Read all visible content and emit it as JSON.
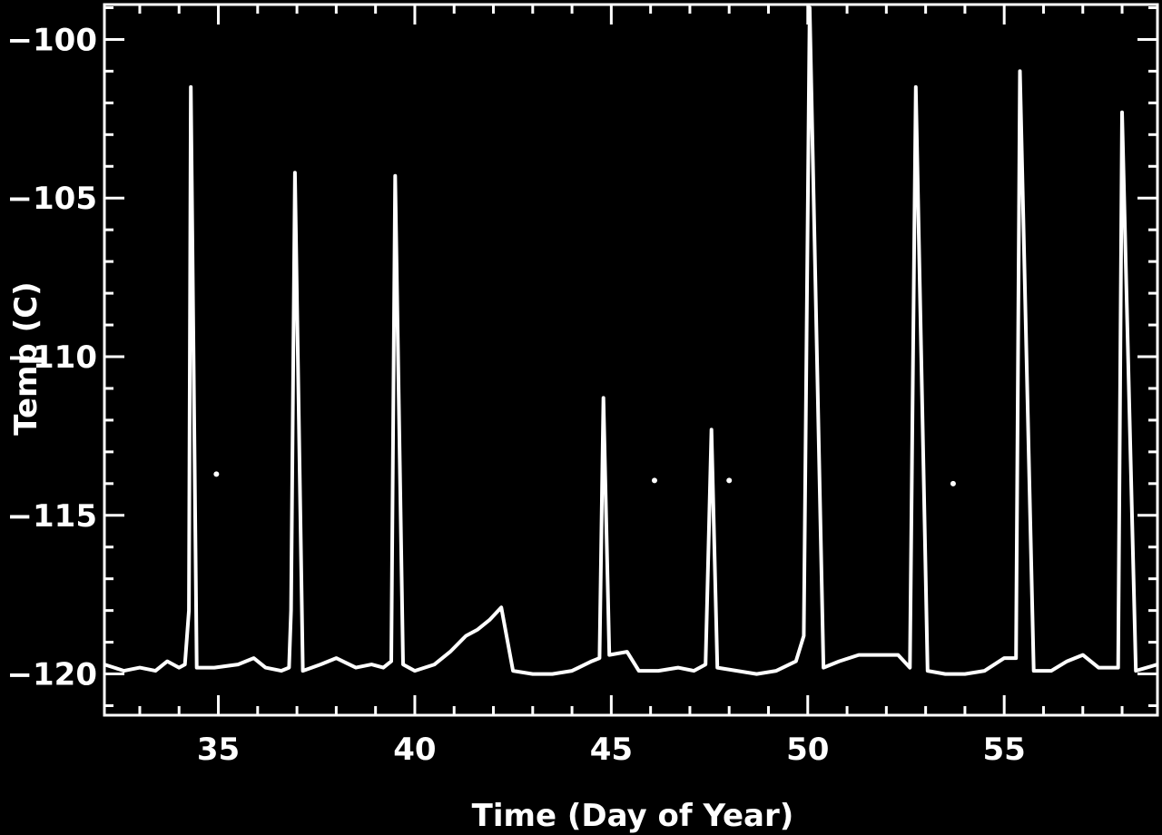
{
  "chart_data": {
    "type": "line",
    "title": "",
    "xlabel": "Time (Day of Year)",
    "ylabel": "Temp (C)",
    "xlim": [
      32.1,
      58.9
    ],
    "ylim": [
      -121.3,
      -98.9
    ],
    "xticks": [
      35,
      40,
      45,
      50,
      55
    ],
    "yticks": [
      -100,
      -105,
      -110,
      -115,
      -120
    ],
    "grid": false,
    "legend": "none",
    "colors": {
      "background": "#000000",
      "foreground": "#ffffff"
    },
    "series": [
      {
        "values": [
          [
            32.1,
            -119.7
          ],
          [
            32.6,
            -119.9
          ],
          [
            33.0,
            -119.8
          ],
          [
            33.4,
            -119.9
          ],
          [
            33.7,
            -119.6
          ],
          [
            34.0,
            -119.8
          ],
          [
            34.15,
            -119.7
          ],
          [
            34.25,
            -118.0
          ],
          [
            34.3,
            -101.5
          ],
          [
            34.45,
            -119.8
          ],
          [
            34.9,
            -119.8
          ],
          [
            35.5,
            -119.7
          ],
          [
            35.9,
            -119.5
          ],
          [
            36.2,
            -119.8
          ],
          [
            36.6,
            -119.9
          ],
          [
            36.8,
            -119.8
          ],
          [
            36.85,
            -118.0
          ],
          [
            36.95,
            -104.2
          ],
          [
            37.15,
            -119.9
          ],
          [
            37.6,
            -119.7
          ],
          [
            38.0,
            -119.5
          ],
          [
            38.5,
            -119.8
          ],
          [
            38.9,
            -119.7
          ],
          [
            39.2,
            -119.8
          ],
          [
            39.4,
            -119.6
          ],
          [
            39.5,
            -104.3
          ],
          [
            39.7,
            -119.7
          ],
          [
            40.0,
            -119.9
          ],
          [
            40.5,
            -119.7
          ],
          [
            40.9,
            -119.3
          ],
          [
            41.3,
            -118.8
          ],
          [
            41.6,
            -118.6
          ],
          [
            41.9,
            -118.3
          ],
          [
            42.2,
            -117.9
          ],
          [
            42.5,
            -119.9
          ],
          [
            43.0,
            -120.0
          ],
          [
            43.5,
            -120.0
          ],
          [
            44.0,
            -119.9
          ],
          [
            44.5,
            -119.6
          ],
          [
            44.7,
            -119.5
          ],
          [
            44.8,
            -111.3
          ],
          [
            44.95,
            -119.4
          ],
          [
            45.4,
            -119.3
          ],
          [
            45.7,
            -119.9
          ],
          [
            46.2,
            -119.9
          ],
          [
            46.7,
            -119.8
          ],
          [
            47.1,
            -119.9
          ],
          [
            47.4,
            -119.7
          ],
          [
            47.55,
            -112.3
          ],
          [
            47.7,
            -119.8
          ],
          [
            48.2,
            -119.9
          ],
          [
            48.7,
            -120.0
          ],
          [
            49.2,
            -119.9
          ],
          [
            49.7,
            -119.6
          ],
          [
            49.9,
            -118.8
          ],
          [
            50.05,
            -99.0
          ],
          [
            50.4,
            -119.8
          ],
          [
            50.8,
            -119.6
          ],
          [
            51.3,
            -119.4
          ],
          [
            51.8,
            -119.4
          ],
          [
            52.3,
            -119.4
          ],
          [
            52.6,
            -119.8
          ],
          [
            52.75,
            -101.5
          ],
          [
            53.05,
            -119.9
          ],
          [
            53.5,
            -120.0
          ],
          [
            54.0,
            -120.0
          ],
          [
            54.5,
            -119.9
          ],
          [
            55.0,
            -119.5
          ],
          [
            55.3,
            -119.5
          ],
          [
            55.4,
            -101.0
          ],
          [
            55.75,
            -119.9
          ],
          [
            56.2,
            -119.9
          ],
          [
            56.6,
            -119.6
          ],
          [
            57.0,
            -119.4
          ],
          [
            57.4,
            -119.8
          ],
          [
            57.9,
            -119.8
          ],
          [
            58.0,
            -102.3
          ],
          [
            58.35,
            -119.9
          ],
          [
            58.9,
            -119.7
          ]
        ]
      },
      {
        "points": [
          [
            34.95,
            -113.7
          ],
          [
            46.1,
            -113.9
          ],
          [
            48.0,
            -113.9
          ],
          [
            53.7,
            -114.0
          ]
        ]
      }
    ]
  }
}
